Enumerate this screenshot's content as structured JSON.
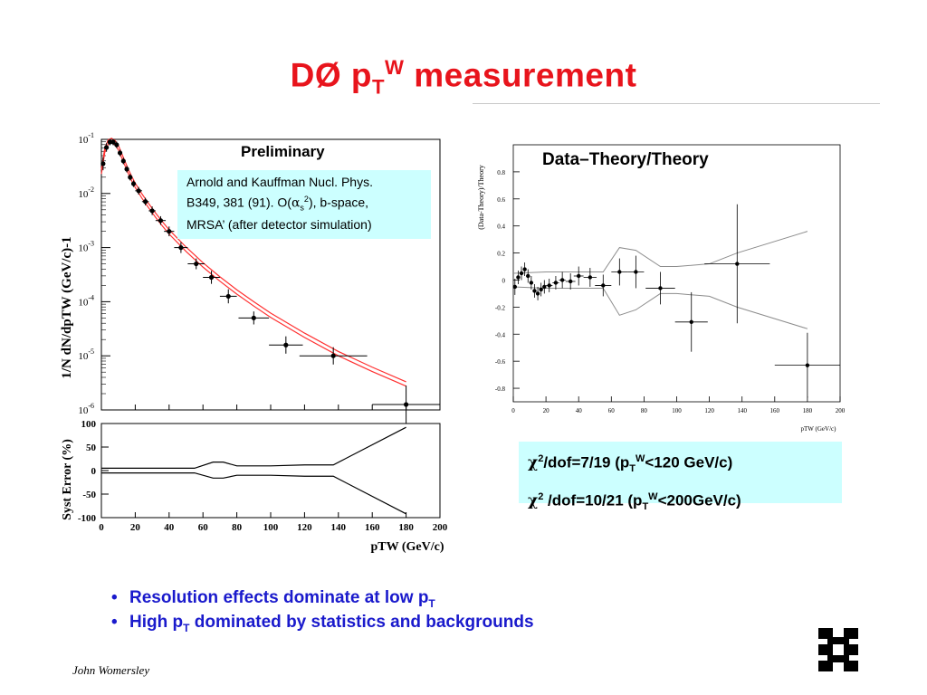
{
  "slide": {
    "title_main": "DØ p",
    "title_sub": "T",
    "title_sup": "W",
    "title_tail": " measurement",
    "author": "John Womersley",
    "logo_name": "fermilab-logo"
  },
  "left_plot": {
    "label": "Preliminary",
    "citation": {
      "line1": "Arnold and Kauffman Nucl. Phys.",
      "line2a": "B349, 381 (91). O(",
      "alpha": "α",
      "alpha_sub": "s",
      "alpha_sup": "2",
      "line2b": "), b-space,",
      "line3": "MRSA’ (after detector simulation)"
    }
  },
  "right_plot": {
    "label": "Data–Theory/Theory"
  },
  "chi2": {
    "row1": {
      "chi": "χ",
      "sup": "2",
      "text_a": "/dof=7/19 (p",
      "sub": "T",
      "sup2": "W",
      "text_b": "<120 GeV/c)"
    },
    "row2": {
      "chi": "χ",
      "sup": "2",
      "text_a": " /dof=10/21 (p",
      "sub": "T",
      "sup2": "W",
      "text_b": "<200GeV/c)"
    }
  },
  "bullets": [
    {
      "text": "Resolution effects dominate at low p",
      "sub": "T",
      "tail": ""
    },
    {
      "text": "High p",
      "sub": "T",
      "tail": " dominated by statistics and backgrounds"
    }
  ],
  "chart_data": [
    {
      "type": "scatter",
      "name": "spectrum",
      "ylabel": "1/N dN/dpTW (GeV/c)-1",
      "xlim": [
        0,
        200
      ],
      "log_y": true,
      "ylim_exp": [
        -6,
        -1
      ],
      "yticks": [
        {
          "base": "10",
          "exp": "-1"
        },
        {
          "base": "10",
          "exp": "-2"
        },
        {
          "base": "10",
          "exp": "-3"
        },
        {
          "base": "10",
          "exp": "-4"
        },
        {
          "base": "10",
          "exp": "-5"
        },
        {
          "base": "10",
          "exp": "-6"
        }
      ],
      "points": [
        {
          "x": 1,
          "y": -1.45,
          "xerr": 1,
          "yerr": 0.12
        },
        {
          "x": 3,
          "y": -1.15,
          "xerr": 1,
          "yerr": 0.08
        },
        {
          "x": 5,
          "y": -1.05,
          "xerr": 1,
          "yerr": 0.06
        },
        {
          "x": 7,
          "y": -1.05,
          "xerr": 1,
          "yerr": 0.06
        },
        {
          "x": 9,
          "y": -1.1,
          "xerr": 1,
          "yerr": 0.06
        },
        {
          "x": 11,
          "y": -1.25,
          "xerr": 1,
          "yerr": 0.06
        },
        {
          "x": 13,
          "y": -1.4,
          "xerr": 1,
          "yerr": 0.06
        },
        {
          "x": 15,
          "y": -1.55,
          "xerr": 1,
          "yerr": 0.06
        },
        {
          "x": 17,
          "y": -1.7,
          "xerr": 1,
          "yerr": 0.06
        },
        {
          "x": 19,
          "y": -1.82,
          "xerr": 1,
          "yerr": 0.06
        },
        {
          "x": 22,
          "y": -1.95,
          "xerr": 2,
          "yerr": 0.07
        },
        {
          "x": 26,
          "y": -2.15,
          "xerr": 2,
          "yerr": 0.07
        },
        {
          "x": 30,
          "y": -2.32,
          "xerr": 2,
          "yerr": 0.08
        },
        {
          "x": 35,
          "y": -2.5,
          "xerr": 3,
          "yerr": 0.08
        },
        {
          "x": 40,
          "y": -2.7,
          "xerr": 3,
          "yerr": 0.09
        },
        {
          "x": 47,
          "y": -3.0,
          "xerr": 4,
          "yerr": 0.1
        },
        {
          "x": 56,
          "y": -3.3,
          "xerr": 5,
          "yerr": 0.1
        },
        {
          "x": 65,
          "y": -3.55,
          "xerr": 5,
          "yerr": 0.12
        },
        {
          "x": 75,
          "y": -3.9,
          "xerr": 5,
          "yerr": 0.13
        },
        {
          "x": 90,
          "y": -4.3,
          "xerr": 9,
          "yerr": 0.12
        },
        {
          "x": 109,
          "y": -4.8,
          "xerr": 10,
          "yerr": 0.16
        },
        {
          "x": 137,
          "y": -5.0,
          "xerr": 20,
          "yerr": 0.16
        },
        {
          "x": 180,
          "y": -5.9,
          "xerr": 20,
          "yerr": 0.35
        }
      ],
      "theory_curve": [
        [
          0,
          -1.6
        ],
        [
          2,
          -1.2
        ],
        [
          4,
          -1.05
        ],
        [
          6,
          -1.02
        ],
        [
          8,
          -1.06
        ],
        [
          10,
          -1.15
        ],
        [
          12,
          -1.3
        ],
        [
          14,
          -1.45
        ],
        [
          16,
          -1.6
        ],
        [
          18,
          -1.73
        ],
        [
          20,
          -1.85
        ],
        [
          24,
          -2.05
        ],
        [
          28,
          -2.23
        ],
        [
          32,
          -2.4
        ],
        [
          36,
          -2.56
        ],
        [
          40,
          -2.71
        ],
        [
          45,
          -2.87
        ],
        [
          50,
          -3.03
        ],
        [
          60,
          -3.32
        ],
        [
          70,
          -3.58
        ],
        [
          80,
          -3.82
        ],
        [
          90,
          -4.04
        ],
        [
          100,
          -4.25
        ],
        [
          120,
          -4.62
        ],
        [
          140,
          -4.96
        ],
        [
          160,
          -5.25
        ],
        [
          180,
          -5.52
        ]
      ],
      "theory_band_halfwidth": 0.04
    },
    {
      "type": "line",
      "name": "syst-error",
      "xlabel": "pTW (GeV/c)",
      "ylabel": "Syst Error (%)",
      "xlim": [
        0,
        200
      ],
      "ylim": [
        -100,
        100
      ],
      "xticks": [
        "0",
        "20",
        "40",
        "60",
        "80",
        "100",
        "120",
        "140",
        "160",
        "180",
        "200"
      ],
      "yticks": [
        "100",
        "50",
        "0",
        "-50",
        "-100"
      ],
      "upper": [
        [
          0,
          5
        ],
        [
          20,
          5
        ],
        [
          55,
          5
        ],
        [
          66,
          18
        ],
        [
          72,
          18
        ],
        [
          80,
          10
        ],
        [
          100,
          10
        ],
        [
          120,
          12
        ],
        [
          137,
          12
        ],
        [
          180,
          92
        ]
      ],
      "lower": [
        [
          0,
          -5
        ],
        [
          20,
          -5
        ],
        [
          55,
          -5
        ],
        [
          66,
          -16
        ],
        [
          72,
          -16
        ],
        [
          80,
          -10
        ],
        [
          100,
          -10
        ],
        [
          120,
          -12
        ],
        [
          137,
          -12
        ],
        [
          180,
          -92
        ]
      ]
    },
    {
      "type": "scatter",
      "name": "data-theory",
      "ylabel": "(Data-Theory)/Theory",
      "xlabel": "pTW (GeV/c)",
      "xlim": [
        0,
        200
      ],
      "ylim": [
        -0.9,
        1.0
      ],
      "xticks": [
        "0",
        "20",
        "40",
        "60",
        "80",
        "100",
        "120",
        "140",
        "160",
        "180",
        "200"
      ],
      "yticks": [
        "0.8",
        "0.6",
        "0.4",
        "0.2",
        "0",
        "-0.2",
        "-0.4",
        "-0.6",
        "-0.8"
      ],
      "points": [
        {
          "x": 1,
          "y": -0.05,
          "xerr": 1,
          "yerr": 0.06
        },
        {
          "x": 3,
          "y": 0.02,
          "xerr": 1,
          "yerr": 0.05
        },
        {
          "x": 5,
          "y": 0.05,
          "xerr": 1,
          "yerr": 0.05
        },
        {
          "x": 7,
          "y": 0.08,
          "xerr": 1,
          "yerr": 0.05
        },
        {
          "x": 9,
          "y": 0.03,
          "xerr": 1,
          "yerr": 0.05
        },
        {
          "x": 11,
          "y": -0.02,
          "xerr": 1,
          "yerr": 0.05
        },
        {
          "x": 13,
          "y": -0.08,
          "xerr": 1,
          "yerr": 0.05
        },
        {
          "x": 15,
          "y": -0.1,
          "xerr": 1,
          "yerr": 0.05
        },
        {
          "x": 17,
          "y": -0.07,
          "xerr": 1,
          "yerr": 0.05
        },
        {
          "x": 19,
          "y": -0.05,
          "xerr": 1,
          "yerr": 0.05
        },
        {
          "x": 22,
          "y": -0.04,
          "xerr": 2,
          "yerr": 0.05
        },
        {
          "x": 26,
          "y": -0.02,
          "xerr": 2,
          "yerr": 0.05
        },
        {
          "x": 30,
          "y": 0.0,
          "xerr": 2,
          "yerr": 0.06
        },
        {
          "x": 35,
          "y": -0.01,
          "xerr": 3,
          "yerr": 0.06
        },
        {
          "x": 40,
          "y": 0.03,
          "xerr": 3,
          "yerr": 0.07
        },
        {
          "x": 47,
          "y": 0.02,
          "xerr": 4,
          "yerr": 0.07
        },
        {
          "x": 55,
          "y": -0.04,
          "xerr": 5,
          "yerr": 0.08
        },
        {
          "x": 65,
          "y": 0.06,
          "xerr": 5,
          "yerr": 0.1
        },
        {
          "x": 75,
          "y": 0.06,
          "xerr": 5,
          "yerr": 0.12
        },
        {
          "x": 90,
          "y": -0.06,
          "xerr": 9,
          "yerr": 0.12
        },
        {
          "x": 109,
          "y": -0.31,
          "xerr": 10,
          "yerr": 0.22
        },
        {
          "x": 137,
          "y": 0.12,
          "xerr": 20,
          "yerr": 0.44
        },
        {
          "x": 180,
          "y": -0.63,
          "xerr": 20,
          "yerr": 0.24
        }
      ],
      "band_upper": [
        [
          0,
          0.05
        ],
        [
          20,
          0.06
        ],
        [
          55,
          0.06
        ],
        [
          65,
          0.24
        ],
        [
          75,
          0.22
        ],
        [
          90,
          0.1
        ],
        [
          100,
          0.1
        ],
        [
          120,
          0.12
        ],
        [
          137,
          0.2
        ],
        [
          180,
          0.36
        ]
      ],
      "band_lower": [
        [
          0,
          -0.05
        ],
        [
          20,
          -0.06
        ],
        [
          55,
          -0.06
        ],
        [
          65,
          -0.26
        ],
        [
          75,
          -0.22
        ],
        [
          90,
          -0.1
        ],
        [
          100,
          -0.1
        ],
        [
          120,
          -0.12
        ],
        [
          137,
          -0.2
        ],
        [
          180,
          -0.36
        ]
      ]
    }
  ]
}
